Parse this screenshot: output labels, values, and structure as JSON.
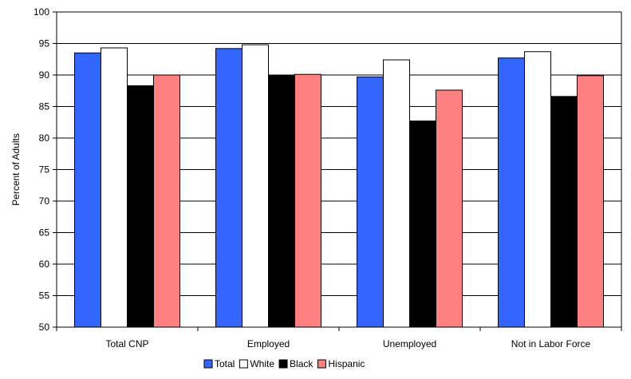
{
  "chart_data": {
    "type": "bar",
    "title": "",
    "xlabel": "",
    "ylabel": "Percent of Adults",
    "ylim": [
      50,
      100
    ],
    "yticks": [
      50,
      55,
      60,
      65,
      70,
      75,
      80,
      85,
      90,
      95,
      100
    ],
    "grid": true,
    "legend_position": "bottom",
    "categories": [
      "Total CNP",
      "Employed",
      "Unemployed",
      "Not in Labor Force"
    ],
    "series": [
      {
        "name": "Total",
        "color": "#3366ff",
        "values": [
          93.5,
          94.2,
          89.7,
          92.7
        ]
      },
      {
        "name": "White",
        "color": "#ffffff",
        "values": [
          94.3,
          94.8,
          92.4,
          93.7
        ]
      },
      {
        "name": "Black",
        "color": "#000000",
        "values": [
          88.3,
          90.0,
          82.7,
          86.6
        ]
      },
      {
        "name": "Hispanic",
        "color": "#ff8080",
        "values": [
          90.0,
          90.1,
          87.6,
          89.9
        ]
      }
    ]
  }
}
